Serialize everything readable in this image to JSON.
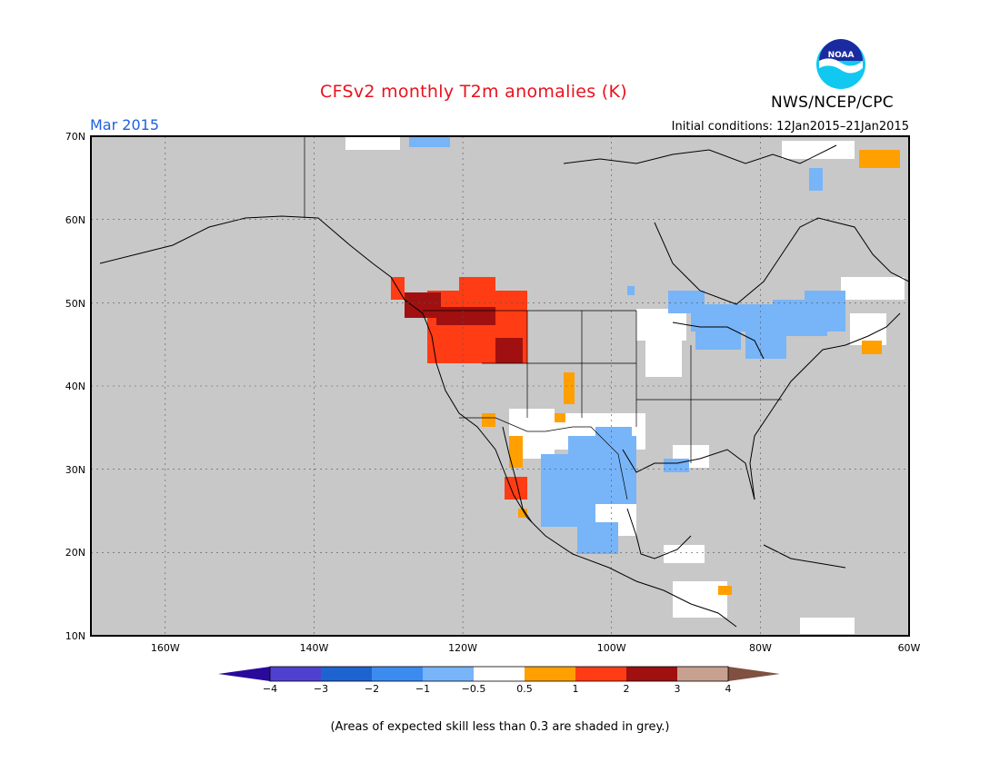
{
  "title": "CFSv2 monthly T2m anomalies (K)",
  "month_label": "Mar 2015",
  "org_label": "NWS/NCEP/CPC",
  "logo_text": "NOAA",
  "initial_conditions": "Initial conditions: 12Jan2015–21Jan2015",
  "footnote": "(Areas of expected skill less than 0.3 are shaded in grey.)",
  "map": {
    "lon_range": [
      -170,
      -60
    ],
    "lat_range": [
      10,
      70
    ],
    "lat_labels": [
      "70N",
      "60N",
      "50N",
      "40N",
      "30N",
      "20N",
      "10N"
    ],
    "lon_labels": [
      "160W",
      "140W",
      "120W",
      "100W",
      "80W",
      "60W"
    ],
    "background_color": "#c8c8c8"
  },
  "colorbar": {
    "labels": [
      "−4",
      "−3",
      "−2",
      "−1",
      "−0.5",
      "0.5",
      "1",
      "2",
      "3",
      "4"
    ],
    "colors": [
      "#2a0a9a",
      "#5040d0",
      "#1e64d0",
      "#3c8cf0",
      "#78b4f8",
      "#ffffff",
      "#ffa000",
      "#ff3c14",
      "#a01010",
      "#c8a090",
      "#805040"
    ]
  },
  "anomaly_regions": [
    {
      "name": "pacific-northwest-warm",
      "color": "#ff3c14"
    },
    {
      "name": "pacific-northwest-core",
      "color": "#a01010"
    },
    {
      "name": "south-central-cool",
      "color": "#78b4f8"
    },
    {
      "name": "great-lakes-cool",
      "color": "#78b4f8"
    },
    {
      "name": "baja-warm",
      "color": "#ffa000"
    }
  ]
}
